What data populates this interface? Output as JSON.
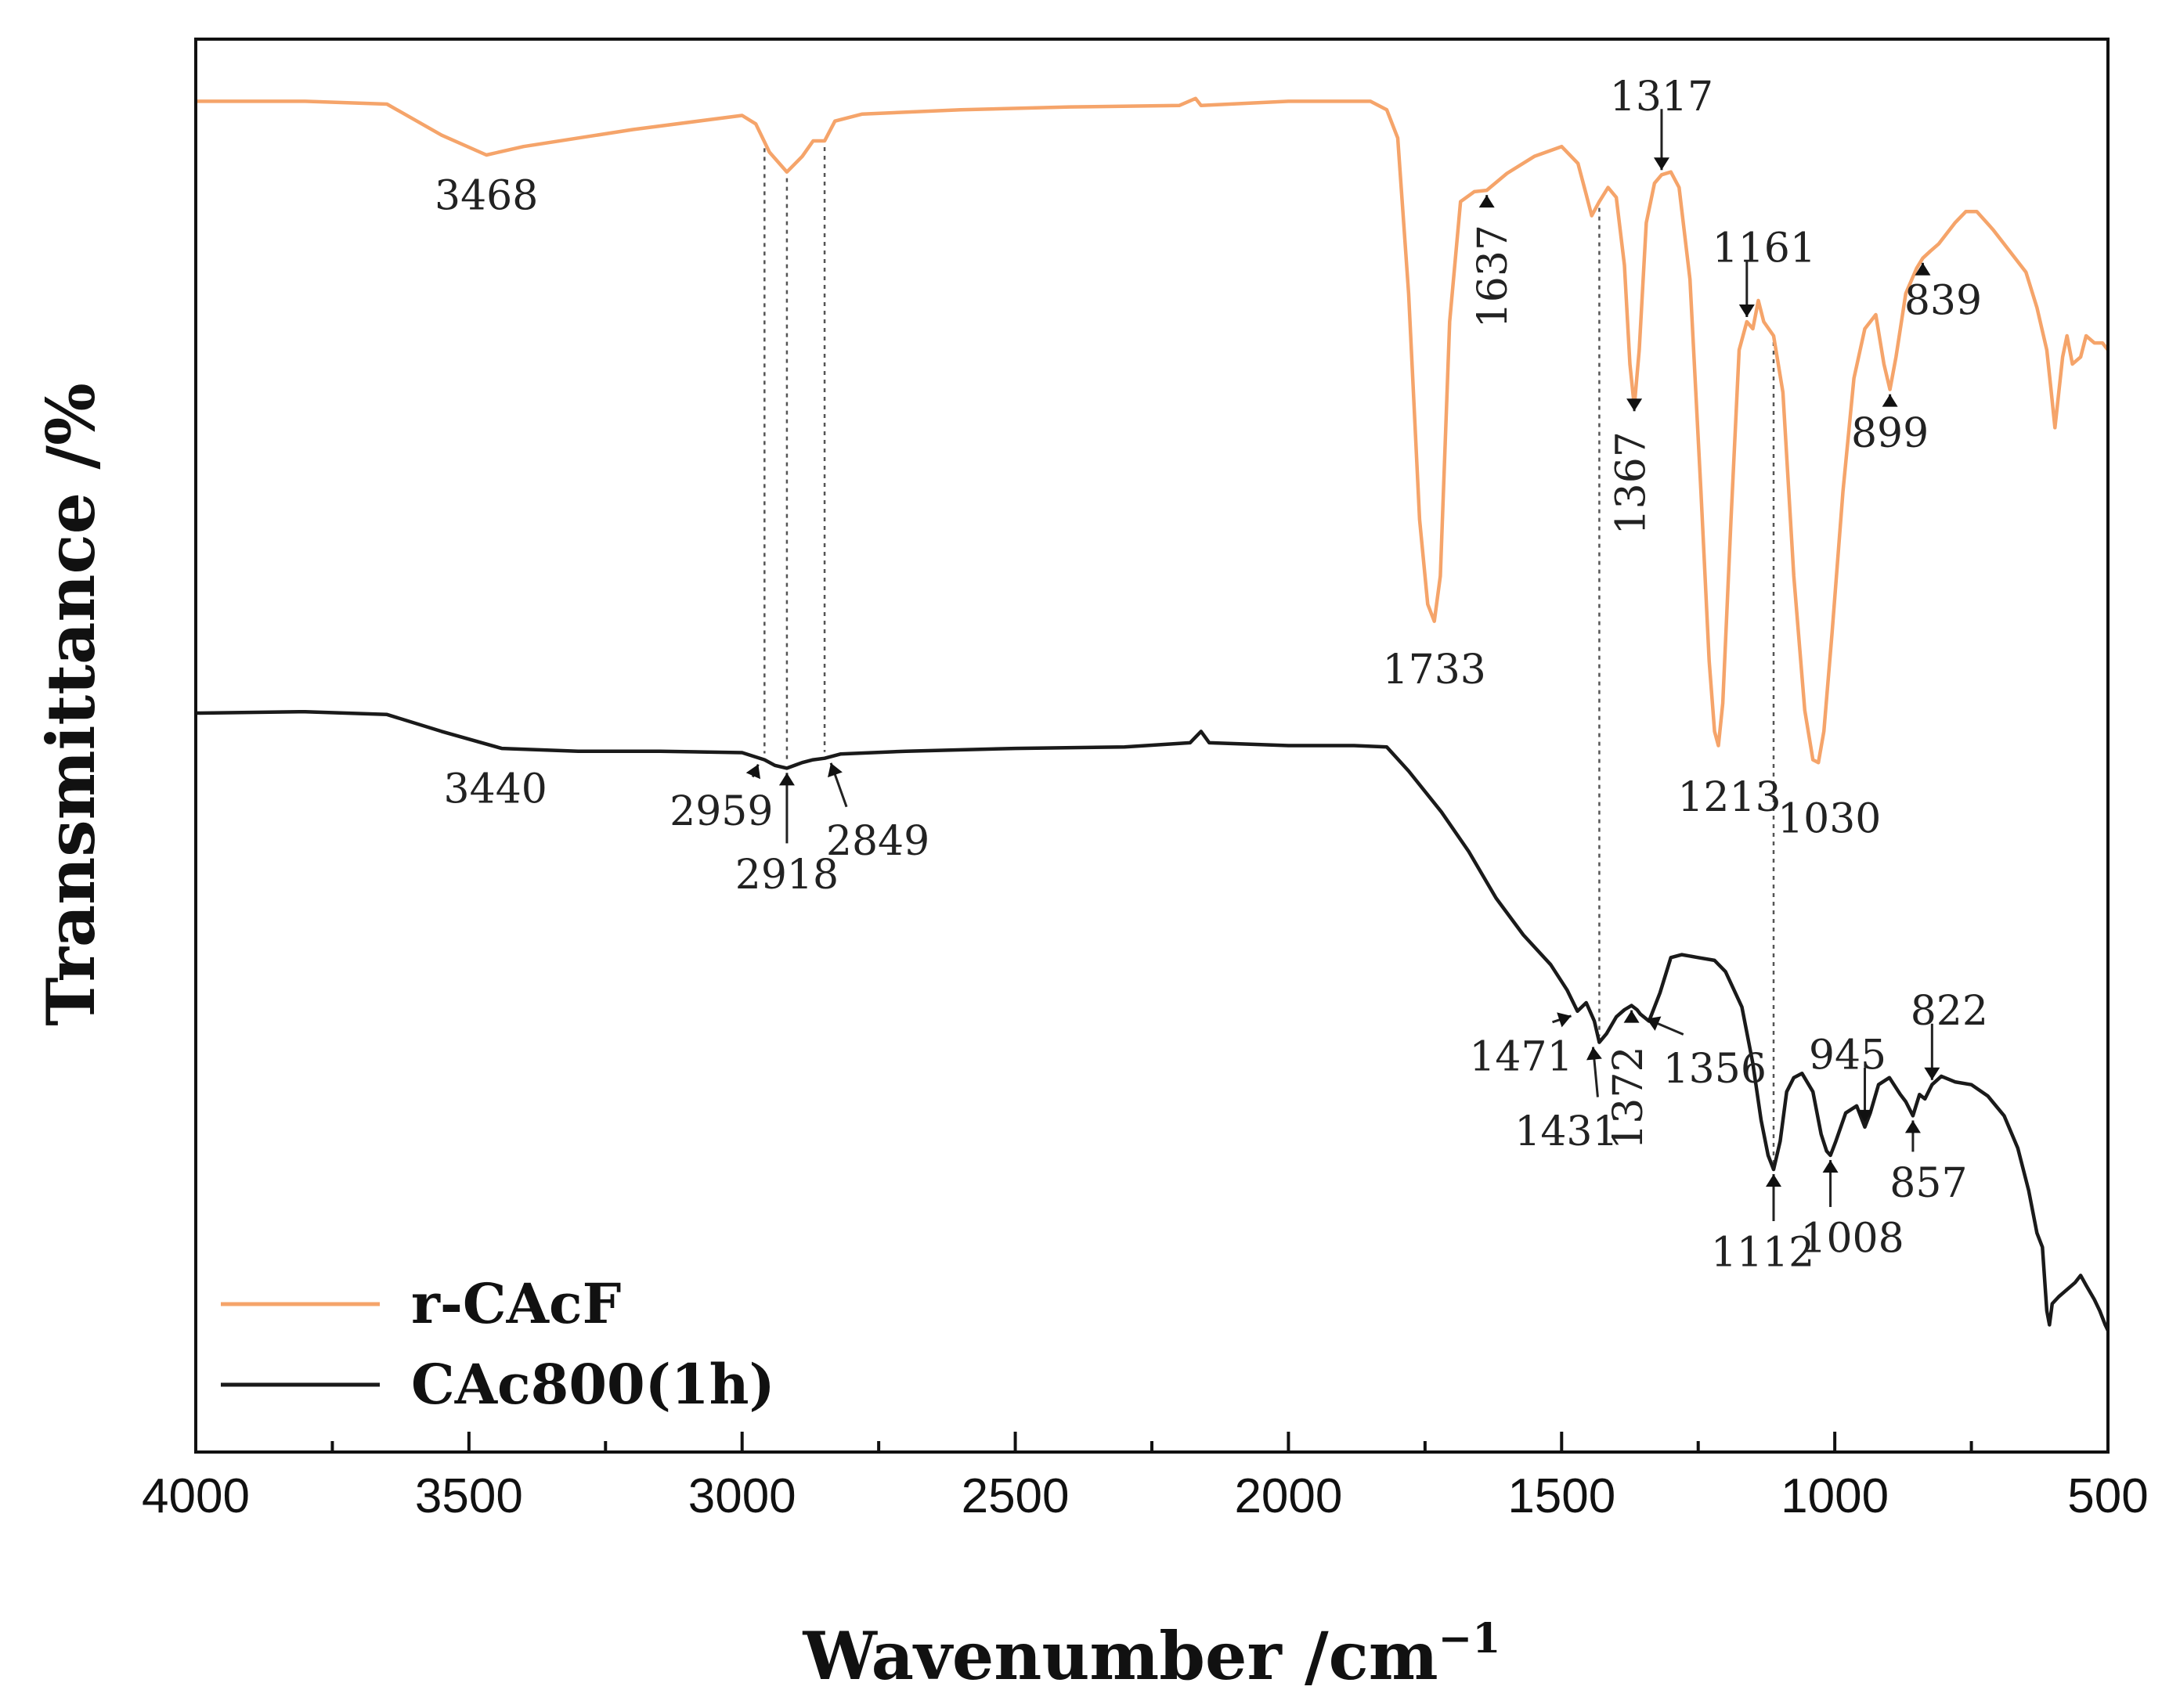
{
  "chart_data": {
    "type": "line",
    "xlabel": "Wavenumber /cm",
    "xlabel_sup": "−1",
    "ylabel": "Transmittance /%",
    "xlim": [
      4000,
      500
    ],
    "ylim": [
      0,
      100
    ],
    "x_ticks": [
      "4000",
      "3500",
      "3000",
      "2500",
      "2000",
      "1500",
      "1000",
      "500"
    ],
    "legend_position": "bottom-left",
    "colors": {
      "r_CAcF": "#f5a46a",
      "CAc800": "#1a1a1a",
      "axis": "#111111",
      "guide": "#555555"
    },
    "series": [
      {
        "name": "r-CAcF",
        "color": "#f5a46a",
        "points": [
          [
            4000,
            95.6
          ],
          [
            3800,
            95.6
          ],
          [
            3650,
            95.4
          ],
          [
            3550,
            93.2
          ],
          [
            3468,
            91.8
          ],
          [
            3400,
            92.4
          ],
          [
            3200,
            93.6
          ],
          [
            3000,
            94.6
          ],
          [
            2975,
            94.0
          ],
          [
            2950,
            92.0
          ],
          [
            2918,
            90.6
          ],
          [
            2890,
            91.7
          ],
          [
            2870,
            92.8
          ],
          [
            2849,
            92.8
          ],
          [
            2830,
            94.2
          ],
          [
            2780,
            94.7
          ],
          [
            2600,
            95.0
          ],
          [
            2400,
            95.2
          ],
          [
            2200,
            95.3
          ],
          [
            2170,
            95.8
          ],
          [
            2160,
            95.3
          ],
          [
            2000,
            95.6
          ],
          [
            1850,
            95.6
          ],
          [
            1820,
            95.0
          ],
          [
            1800,
            93.0
          ],
          [
            1780,
            82.0
          ],
          [
            1760,
            66.0
          ],
          [
            1745,
            60.0
          ],
          [
            1733,
            58.8
          ],
          [
            1722,
            62.0
          ],
          [
            1705,
            80.0
          ],
          [
            1685,
            88.5
          ],
          [
            1660,
            89.2
          ],
          [
            1637,
            89.3
          ],
          [
            1600,
            90.5
          ],
          [
            1550,
            91.7
          ],
          [
            1500,
            92.4
          ],
          [
            1470,
            91.2
          ],
          [
            1455,
            89.0
          ],
          [
            1445,
            87.5
          ],
          [
            1431,
            88.5
          ],
          [
            1415,
            89.5
          ],
          [
            1400,
            88.8
          ],
          [
            1385,
            84.0
          ],
          [
            1375,
            77.0
          ],
          [
            1367,
            74.0
          ],
          [
            1358,
            78.0
          ],
          [
            1345,
            87.0
          ],
          [
            1330,
            89.8
          ],
          [
            1317,
            90.4
          ],
          [
            1300,
            90.6
          ],
          [
            1285,
            89.5
          ],
          [
            1265,
            83.0
          ],
          [
            1245,
            68.0
          ],
          [
            1230,
            56.0
          ],
          [
            1220,
            51.0
          ],
          [
            1213,
            50.0
          ],
          [
            1205,
            53.0
          ],
          [
            1190,
            66.0
          ],
          [
            1175,
            78.0
          ],
          [
            1161,
            80.0
          ],
          [
            1150,
            79.5
          ],
          [
            1140,
            81.5
          ],
          [
            1130,
            80.0
          ],
          [
            1112,
            79.0
          ],
          [
            1095,
            75.0
          ],
          [
            1075,
            62.0
          ],
          [
            1055,
            52.5
          ],
          [
            1040,
            49.0
          ],
          [
            1030,
            48.8
          ],
          [
            1020,
            51.0
          ],
          [
            1005,
            58.0
          ],
          [
            985,
            68.0
          ],
          [
            965,
            76.0
          ],
          [
            945,
            79.5
          ],
          [
            925,
            80.5
          ],
          [
            910,
            77.0
          ],
          [
            899,
            75.2
          ],
          [
            888,
            77.5
          ],
          [
            870,
            82.0
          ],
          [
            850,
            83.8
          ],
          [
            839,
            84.5
          ],
          [
            825,
            85.0
          ],
          [
            810,
            85.5
          ],
          [
            780,
            87.0
          ],
          [
            760,
            87.8
          ],
          [
            740,
            87.8
          ],
          [
            710,
            86.5
          ],
          [
            680,
            85.0
          ],
          [
            650,
            83.5
          ],
          [
            630,
            81.0
          ],
          [
            612,
            78.0
          ],
          [
            605,
            75.5
          ],
          [
            597,
            72.5
          ],
          [
            590,
            75.0
          ],
          [
            583,
            77.5
          ],
          [
            575,
            79.0
          ],
          [
            565,
            77.0
          ],
          [
            550,
            77.5
          ],
          [
            540,
            79.0
          ],
          [
            525,
            78.5
          ],
          [
            510,
            78.5
          ],
          [
            500,
            78.0
          ]
        ]
      },
      {
        "name": "CAc800(1h)",
        "color": "#1a1a1a",
        "points": [
          [
            4000,
            52.3
          ],
          [
            3800,
            52.4
          ],
          [
            3650,
            52.2
          ],
          [
            3550,
            51.0
          ],
          [
            3440,
            49.8
          ],
          [
            3300,
            49.6
          ],
          [
            3150,
            49.6
          ],
          [
            3000,
            49.5
          ],
          [
            2959,
            49.0
          ],
          [
            2940,
            48.6
          ],
          [
            2918,
            48.4
          ],
          [
            2890,
            48.8
          ],
          [
            2870,
            49.0
          ],
          [
            2849,
            49.1
          ],
          [
            2820,
            49.4
          ],
          [
            2700,
            49.6
          ],
          [
            2500,
            49.8
          ],
          [
            2300,
            49.9
          ],
          [
            2180,
            50.2
          ],
          [
            2160,
            51.0
          ],
          [
            2145,
            50.2
          ],
          [
            2000,
            50.0
          ],
          [
            1880,
            50.0
          ],
          [
            1820,
            49.9
          ],
          [
            1780,
            48.2
          ],
          [
            1720,
            45.3
          ],
          [
            1670,
            42.5
          ],
          [
            1620,
            39.2
          ],
          [
            1570,
            36.6
          ],
          [
            1520,
            34.5
          ],
          [
            1490,
            32.7
          ],
          [
            1471,
            31.2
          ],
          [
            1455,
            31.8
          ],
          [
            1440,
            30.5
          ],
          [
            1431,
            29.0
          ],
          [
            1418,
            29.6
          ],
          [
            1400,
            30.8
          ],
          [
            1385,
            31.3
          ],
          [
            1372,
            31.6
          ],
          [
            1362,
            31.3
          ],
          [
            1356,
            31.0
          ],
          [
            1340,
            30.5
          ],
          [
            1320,
            32.5
          ],
          [
            1300,
            35.0
          ],
          [
            1280,
            35.2
          ],
          [
            1250,
            35.0
          ],
          [
            1220,
            34.8
          ],
          [
            1200,
            34.0
          ],
          [
            1170,
            31.5
          ],
          [
            1150,
            27.5
          ],
          [
            1135,
            23.5
          ],
          [
            1122,
            21.0
          ],
          [
            1112,
            20.0
          ],
          [
            1100,
            22.0
          ],
          [
            1088,
            25.5
          ],
          [
            1075,
            26.5
          ],
          [
            1060,
            26.8
          ],
          [
            1040,
            25.5
          ],
          [
            1025,
            22.5
          ],
          [
            1015,
            21.3
          ],
          [
            1008,
            21.0
          ],
          [
            998,
            22.0
          ],
          [
            980,
            24.0
          ],
          [
            960,
            24.5
          ],
          [
            945,
            23.0
          ],
          [
            935,
            24.0
          ],
          [
            920,
            26.0
          ],
          [
            900,
            26.5
          ],
          [
            880,
            25.3
          ],
          [
            870,
            24.8
          ],
          [
            857,
            23.8
          ],
          [
            845,
            25.3
          ],
          [
            835,
            25.0
          ],
          [
            822,
            26.0
          ],
          [
            805,
            26.6
          ],
          [
            780,
            26.2
          ],
          [
            750,
            26.0
          ],
          [
            720,
            25.2
          ],
          [
            690,
            23.8
          ],
          [
            665,
            21.5
          ],
          [
            645,
            18.5
          ],
          [
            630,
            15.5
          ],
          [
            620,
            14.5
          ],
          [
            612,
            10.0
          ],
          [
            607,
            9.0
          ],
          [
            602,
            10.5
          ],
          [
            590,
            11.0
          ],
          [
            575,
            11.5
          ],
          [
            560,
            12.0
          ],
          [
            550,
            12.5
          ],
          [
            540,
            11.8
          ],
          [
            525,
            10.8
          ],
          [
            515,
            10.0
          ],
          [
            505,
            9.0
          ],
          [
            500,
            8.6
          ]
        ]
      }
    ],
    "annotations": [
      {
        "label": "3468",
        "series": "r-CAcF"
      },
      {
        "label": "1733",
        "series": "r-CAcF"
      },
      {
        "label": "1637",
        "series": "r-CAcF"
      },
      {
        "label": "1367",
        "series": "r-CAcF"
      },
      {
        "label": "1317",
        "series": "r-CAcF"
      },
      {
        "label": "1213",
        "series": "r-CAcF"
      },
      {
        "label": "1161",
        "series": "r-CAcF"
      },
      {
        "label": "1030",
        "series": "r-CAcF"
      },
      {
        "label": "899",
        "series": "r-CAcF"
      },
      {
        "label": "839",
        "series": "r-CAcF"
      },
      {
        "label": "3440",
        "series": "CAc800(1h)"
      },
      {
        "label": "2959",
        "series": "CAc800(1h)"
      },
      {
        "label": "2918",
        "series": "CAc800(1h)"
      },
      {
        "label": "2849",
        "series": "CAc800(1h)"
      },
      {
        "label": "1471",
        "series": "CAc800(1h)"
      },
      {
        "label": "1431",
        "series": "CAc800(1h)"
      },
      {
        "label": "1372",
        "series": "CAc800(1h)"
      },
      {
        "label": "1356",
        "series": "CAc800(1h)"
      },
      {
        "label": "1112",
        "series": "CAc800(1h)"
      },
      {
        "label": "1008",
        "series": "CAc800(1h)"
      },
      {
        "label": "945",
        "series": "CAc800(1h)"
      },
      {
        "label": "857",
        "series": "CAc800(1h)"
      },
      {
        "label": "822",
        "series": "CAc800(1h)"
      }
    ],
    "guide_lines": [
      2959,
      2918,
      2849,
      1431,
      1112
    ]
  }
}
